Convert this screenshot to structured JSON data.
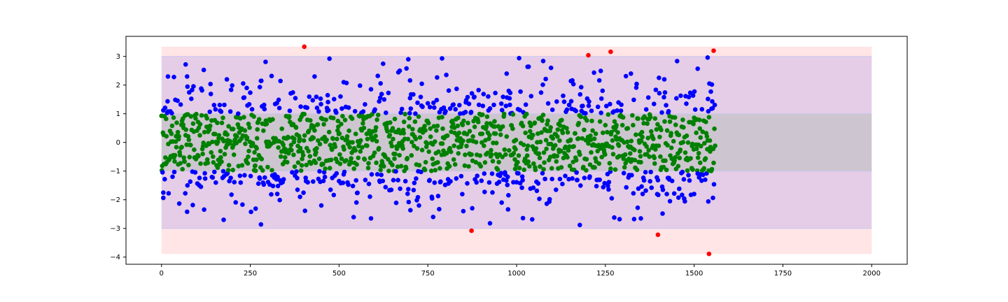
{
  "chart_data": {
    "type": "scatter",
    "title": "",
    "xlabel": "",
    "ylabel": "",
    "xlim": [
      -100,
      2100
    ],
    "ylim": [
      -4.25,
      3.7
    ],
    "grid": false,
    "x_ticks": [
      0,
      250,
      500,
      750,
      1000,
      1250,
      1500,
      1750,
      2000
    ],
    "y_ticks": [
      -4,
      -3,
      -2,
      -1,
      0,
      1,
      2,
      3
    ],
    "bands": [
      {
        "zone": "outer",
        "y0": -3.89,
        "y1": 3.34,
        "x0": 0,
        "x1": 2000,
        "color": "#ff0000",
        "opacity": 0.1
      },
      {
        "zone": "two-sigma",
        "y0": -3,
        "y1": 3,
        "x0": 0,
        "x1": 2000,
        "color": "#0000ff",
        "opacity": 0.1
      },
      {
        "zone": "one-sigma",
        "y0": -1,
        "y1": 1,
        "x0": 0,
        "x1": 2000,
        "color": "#008000",
        "opacity": 0.1
      }
    ],
    "band_edge_color": "#c7c7f0",
    "point_colors": {
      "inner": "#008000",
      "mid": "#0000ff",
      "outlier": "#ff0000"
    },
    "n_points": 1560,
    "outliers": [
      {
        "x": 402,
        "y": 3.34
      },
      {
        "x": 1202,
        "y": 3.04
      },
      {
        "x": 1265,
        "y": 3.16
      },
      {
        "x": 1555,
        "y": 3.2
      },
      {
        "x": 873,
        "y": -3.08
      },
      {
        "x": 1398,
        "y": -3.22
      },
      {
        "x": 1542,
        "y": -3.89
      }
    ],
    "sample_points_mid": [
      {
        "x": 5,
        "y": 1.12
      },
      {
        "x": 18,
        "y": 2.3
      },
      {
        "x": 35,
        "y": 2.28
      },
      {
        "x": 68,
        "y": 2.72
      },
      {
        "x": 72,
        "y": 2.3
      },
      {
        "x": 184,
        "y": 2.2
      },
      {
        "x": 240,
        "y": 1.9
      },
      {
        "x": 277,
        "y": 1.93
      },
      {
        "x": 431,
        "y": 2.3
      },
      {
        "x": 513,
        "y": 2.1
      },
      {
        "x": 617,
        "y": 2.06
      },
      {
        "x": 671,
        "y": 2.5
      },
      {
        "x": 695,
        "y": 2.9
      },
      {
        "x": 700,
        "y": 2.16
      },
      {
        "x": 790,
        "y": 2.93
      },
      {
        "x": 972,
        "y": 2.4
      },
      {
        "x": 1075,
        "y": 2.84
      },
      {
        "x": 1097,
        "y": 2.6
      },
      {
        "x": 1157,
        "y": 2.16
      },
      {
        "x": 1322,
        "y": 2.4
      },
      {
        "x": 1510,
        "y": 2.57
      },
      {
        "x": 1538,
        "y": 2.96
      },
      {
        "x": 1550,
        "y": 2.02
      },
      {
        "x": 5,
        "y": -1.75
      },
      {
        "x": 73,
        "y": -1.5
      },
      {
        "x": 175,
        "y": -2.7
      },
      {
        "x": 280,
        "y": -2.86
      },
      {
        "x": 265,
        "y": -2.31
      },
      {
        "x": 390,
        "y": -1.9
      },
      {
        "x": 450,
        "y": -2.2
      },
      {
        "x": 590,
        "y": -2.65
      },
      {
        "x": 765,
        "y": -2.6
      },
      {
        "x": 850,
        "y": -2.4
      },
      {
        "x": 925,
        "y": -2.82
      },
      {
        "x": 1018,
        "y": -2.64
      },
      {
        "x": 1178,
        "y": -2.88
      },
      {
        "x": 1290,
        "y": -2.68
      },
      {
        "x": 1350,
        "y": -2.65
      },
      {
        "x": 1432,
        "y": -2.05
      },
      {
        "x": 1500,
        "y": -1.8
      },
      {
        "x": 1540,
        "y": -2.06
      }
    ]
  }
}
